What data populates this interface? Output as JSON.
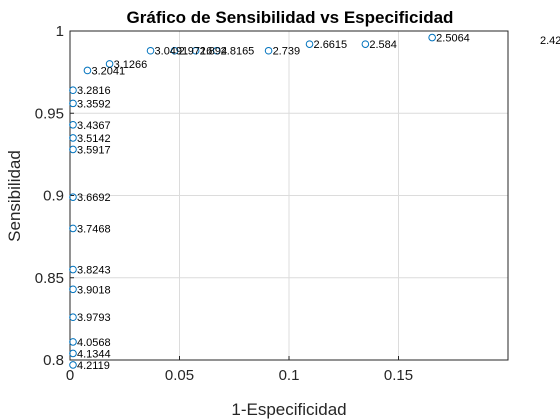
{
  "chart_data": {
    "type": "scatter",
    "title": "Gráfico de Sensibilidad vs Especificidad",
    "xlabel": "1-Especificidad",
    "ylabel": "Sensibilidad",
    "xlim": [
      0,
      0.2
    ],
    "ylim": [
      0.8,
      1.0
    ],
    "xticks": [
      0,
      0.05,
      0.1,
      0.15
    ],
    "xtick_labels": [
      "0",
      "0.05",
      "0.1",
      "0.15"
    ],
    "yticks": [
      0.8,
      0.85,
      0.9,
      0.95,
      1.0
    ],
    "ytick_labels": [
      "0.8",
      "0.85",
      "0.9",
      "0.95",
      "1"
    ],
    "grid": true,
    "marker": "open-circle",
    "marker_color": "#0072bd",
    "points": [
      {
        "x": 0.0,
        "y": 0.797,
        "label": "4.2119"
      },
      {
        "x": 0.0,
        "y": 0.804,
        "label": "4.1344"
      },
      {
        "x": 0.0,
        "y": 0.811,
        "label": "4.0568"
      },
      {
        "x": 0.0,
        "y": 0.826,
        "label": "3.9793"
      },
      {
        "x": 0.0,
        "y": 0.843,
        "label": "3.9018"
      },
      {
        "x": 0.0,
        "y": 0.855,
        "label": "3.8243"
      },
      {
        "x": 0.0,
        "y": 0.88,
        "label": "3.7468"
      },
      {
        "x": 0.0,
        "y": 0.899,
        "label": "3.6692"
      },
      {
        "x": 0.0,
        "y": 0.928,
        "label": "3.5917"
      },
      {
        "x": 0.0,
        "y": 0.935,
        "label": "3.5142"
      },
      {
        "x": 0.0,
        "y": 0.943,
        "label": "3.4367"
      },
      {
        "x": 0.0,
        "y": 0.956,
        "label": "3.3592"
      },
      {
        "x": 0.0,
        "y": 0.964,
        "label": "3.2816"
      },
      {
        "x": 0.0066,
        "y": 0.976,
        "label": "3.2041"
      },
      {
        "x": 0.0167,
        "y": 0.98,
        "label": "3.1266"
      },
      {
        "x": 0.0354,
        "y": 0.988,
        "label": "3.0491"
      },
      {
        "x": 0.0464,
        "y": 0.988,
        "label": "2.9716"
      },
      {
        "x": 0.056,
        "y": 0.988,
        "label": "2.894"
      },
      {
        "x": 0.0656,
        "y": 0.988,
        "label": "2.8165"
      },
      {
        "x": 0.0893,
        "y": 0.988,
        "label": "2.739"
      },
      {
        "x": 0.108,
        "y": 0.992,
        "label": "2.6615"
      },
      {
        "x": 0.1335,
        "y": 0.992,
        "label": "2.584"
      },
      {
        "x": 0.164,
        "y": 0.996,
        "label": "2.5064"
      }
    ],
    "offscreen_label": "2.42"
  }
}
